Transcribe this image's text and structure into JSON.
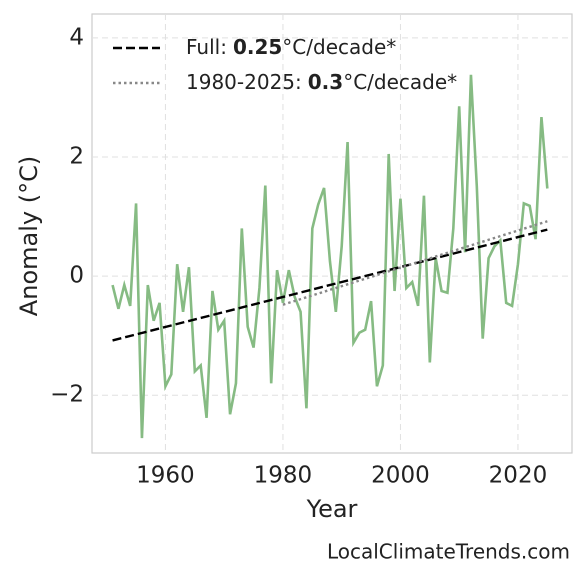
{
  "chart_data": {
    "type": "line",
    "xlabel": "Year",
    "ylabel": "Anomaly (°C)",
    "watermark": "LocalClimateTrends.com",
    "xlim": [
      1947.5,
      2029.2
    ],
    "ylim": [
      -2.97,
      4.4
    ],
    "xticks": [
      1960,
      1980,
      2000,
      2020
    ],
    "yticks": [
      {
        "value": -2,
        "label": "−2"
      },
      0,
      2,
      4
    ],
    "grid": true,
    "legend": "upper left",
    "series": [
      {
        "color": "#86bb83",
        "x": [
          1951,
          1952,
          1953,
          1954,
          1955,
          1956,
          1957,
          1958,
          1959,
          1960,
          1961,
          1962,
          1963,
          1964,
          1965,
          1966,
          1967,
          1968,
          1969,
          1970,
          1971,
          1972,
          1973,
          1974,
          1975,
          1976,
          1977,
          1978,
          1979,
          1980,
          1981,
          1982,
          1983,
          1984,
          1985,
          1986,
          1987,
          1988,
          1989,
          1990,
          1991,
          1992,
          1993,
          1994,
          1995,
          1996,
          1997,
          1998,
          1999,
          2000,
          2001,
          2002,
          2003,
          2004,
          2005,
          2006,
          2007,
          2008,
          2009,
          2010,
          2011,
          2012,
          2013,
          2014,
          2015,
          2016,
          2017,
          2018,
          2019,
          2020,
          2021,
          2022,
          2023,
          2024,
          2025
        ],
        "values": [
          -0.15,
          -0.55,
          -0.15,
          -0.5,
          1.22,
          -2.72,
          -0.15,
          -0.75,
          -0.45,
          -1.85,
          -1.65,
          0.2,
          -0.6,
          0.15,
          -1.6,
          -1.5,
          -2.38,
          -0.25,
          -0.9,
          -0.75,
          -2.32,
          -1.8,
          0.8,
          -0.85,
          -1.2,
          -0.2,
          1.52,
          -1.8,
          0.1,
          -0.45,
          0.1,
          -0.35,
          -0.6,
          -2.22,
          0.8,
          1.2,
          1.48,
          0.25,
          -0.6,
          0.5,
          2.25,
          -1.12,
          -0.95,
          -0.9,
          -0.42,
          -1.85,
          -1.5,
          2.05,
          -0.25,
          1.3,
          -0.2,
          -0.1,
          -0.5,
          1.35,
          -1.45,
          0.3,
          -0.25,
          -0.28,
          0.8,
          2.85,
          0.4,
          3.38,
          1.5,
          -1.05,
          0.3,
          0.5,
          0.6,
          -0.45,
          -0.5,
          0.2,
          1.22,
          1.18,
          0.62,
          2.67,
          1.47
        ]
      },
      {
        "name": "Full:",
        "slope": 0.25,
        "slope_unit": "°C/decade*",
        "color": "#000000",
        "dash": "dashed",
        "x": [
          1951,
          2025
        ],
        "values": [
          -1.08,
          0.78
        ]
      },
      {
        "name": "1980-2025:",
        "slope": 0.3,
        "slope_unit": "°C/decade*",
        "color": "#888888",
        "dash": "dotted",
        "x": [
          1980,
          2025
        ],
        "values": [
          -0.48,
          0.92
        ]
      }
    ]
  }
}
